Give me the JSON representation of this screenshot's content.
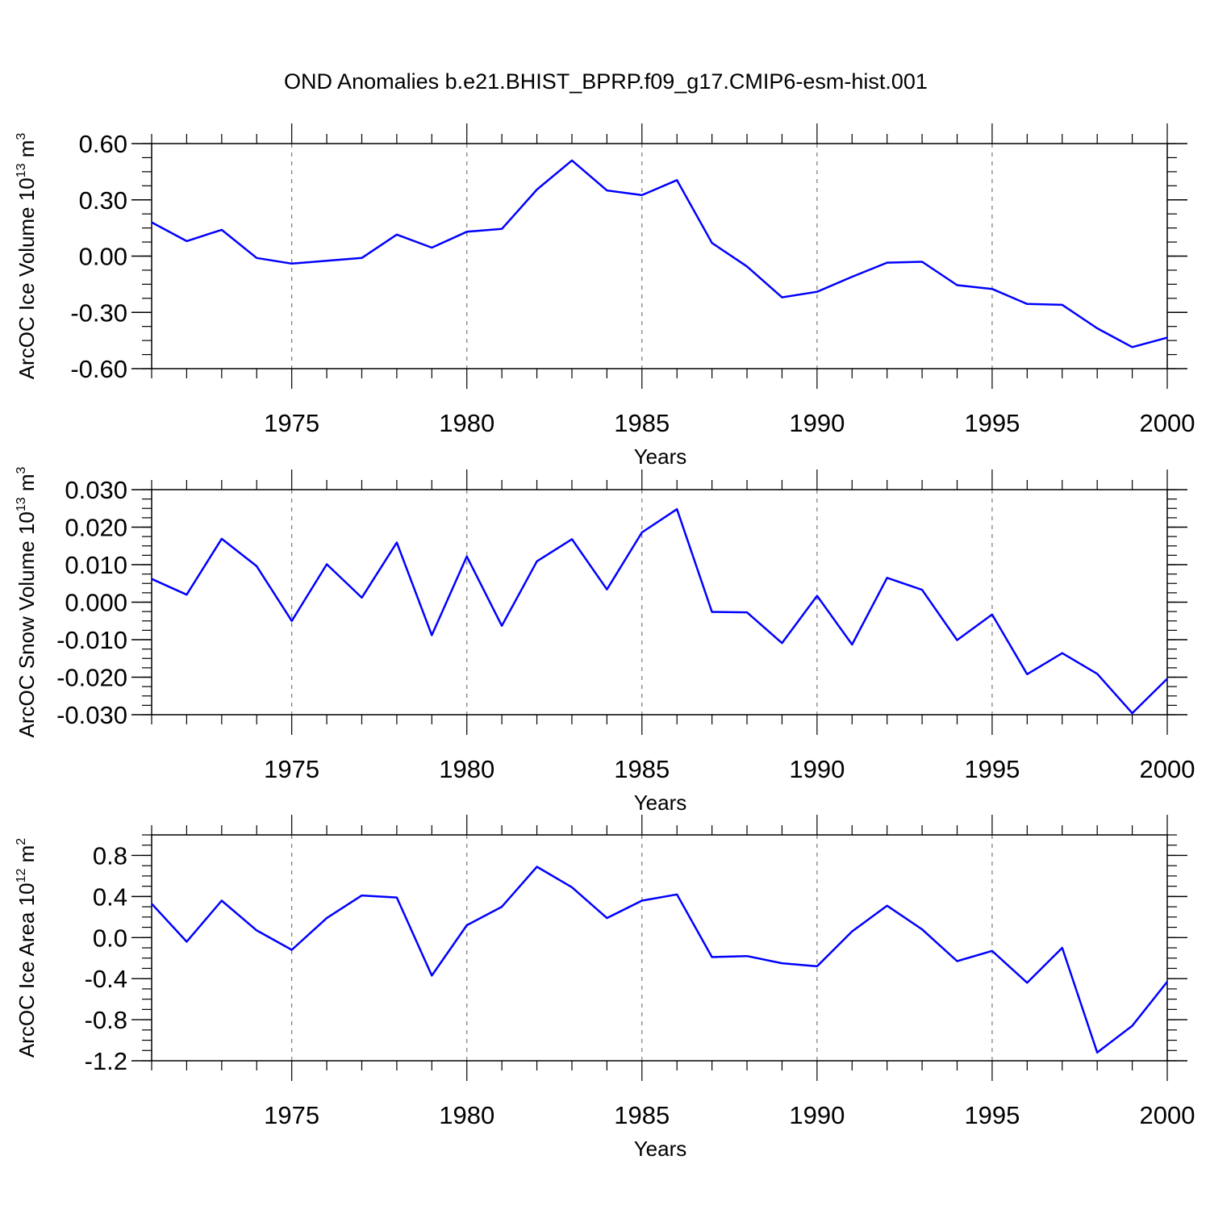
{
  "figure": {
    "title": "OND Anomalies b.e21.BHIST_BPRP.f09_g17.CMIP6-esm-hist.001"
  },
  "chart_data": [
    {
      "type": "line",
      "ylabel": "ArcOC Ice Volume 10",
      "ylabel_sup": "13",
      "ylabel_unit": " m",
      "ylabel_unit_sup": "3",
      "xlabel": "Years",
      "ylim": [
        -0.6,
        0.6
      ],
      "xlim": [
        1971,
        2000
      ],
      "yticks": [
        -0.6,
        -0.3,
        0.0,
        0.3,
        0.6
      ],
      "ytick_labels": [
        "-0.60",
        "-0.30",
        "0.00",
        "0.30",
        "0.60"
      ],
      "xticks": [
        1975,
        1980,
        1985,
        1990,
        1995,
        2000
      ],
      "xtick_labels": [
        "1975",
        "1980",
        "1985",
        "1990",
        "1995",
        "2000"
      ],
      "grid": "vertical dashed at major x ticks",
      "line_color": "#0000ff",
      "x": [
        1971,
        1972,
        1973,
        1974,
        1975,
        1976,
        1977,
        1978,
        1979,
        1980,
        1981,
        1982,
        1983,
        1984,
        1985,
        1986,
        1987,
        1988,
        1989,
        1990,
        1991,
        1992,
        1993,
        1994,
        1995,
        1996,
        1997,
        1998,
        1999,
        2000
      ],
      "values": [
        0.18,
        0.08,
        0.14,
        -0.01,
        -0.04,
        -0.025,
        -0.01,
        0.115,
        0.045,
        0.13,
        0.145,
        0.355,
        0.51,
        0.35,
        0.325,
        0.405,
        0.07,
        -0.055,
        -0.22,
        -0.19,
        -0.11,
        -0.035,
        -0.03,
        -0.155,
        -0.175,
        -0.255,
        -0.26,
        -0.385,
        -0.485,
        -0.435
      ]
    },
    {
      "type": "line",
      "ylabel": "ArcOC Snow Volume 10",
      "ylabel_sup": "13",
      "ylabel_unit": " m",
      "ylabel_unit_sup": "3",
      "xlabel": "Years",
      "ylim": [
        -0.03,
        0.03
      ],
      "xlim": [
        1971,
        2000
      ],
      "yticks": [
        -0.03,
        -0.02,
        -0.01,
        0.0,
        0.01,
        0.02,
        0.03
      ],
      "ytick_labels": [
        "-0.030",
        "-0.020",
        "-0.010",
        "0.000",
        "0.010",
        "0.020",
        "0.030"
      ],
      "xticks": [
        1975,
        1980,
        1985,
        1990,
        1995,
        2000
      ],
      "xtick_labels": [
        "1975",
        "1980",
        "1985",
        "1990",
        "1995",
        "2000"
      ],
      "grid": "vertical dashed at major x ticks",
      "line_color": "#0000ff",
      "x": [
        1971,
        1972,
        1973,
        1974,
        1975,
        1976,
        1977,
        1978,
        1979,
        1980,
        1981,
        1982,
        1983,
        1984,
        1985,
        1986,
        1987,
        1988,
        1989,
        1990,
        1991,
        1992,
        1993,
        1994,
        1995,
        1996,
        1997,
        1998,
        1999,
        2000
      ],
      "values": [
        0.0062,
        0.002,
        0.0169,
        0.0096,
        -0.005,
        0.0101,
        0.0012,
        0.0159,
        -0.0088,
        0.0122,
        -0.0063,
        0.0109,
        0.0168,
        0.0034,
        0.0186,
        0.0248,
        -0.0026,
        -0.0027,
        -0.0109,
        0.0017,
        -0.0113,
        0.0065,
        0.0033,
        -0.0101,
        -0.0033,
        -0.0192,
        -0.0136,
        -0.0191,
        -0.0296,
        -0.0204
      ]
    },
    {
      "type": "line",
      "ylabel": "ArcOC Ice Area 10",
      "ylabel_sup": "12",
      "ylabel_unit": " m",
      "ylabel_unit_sup": "2",
      "xlabel": "Years",
      "ylim": [
        -1.2,
        1.0
      ],
      "xlim": [
        1971,
        2000
      ],
      "yticks": [
        -1.2,
        -0.8,
        -0.4,
        0.0,
        0.4,
        0.8
      ],
      "ytick_labels": [
        "-1.2",
        "-0.8",
        "-0.4",
        "0.0",
        "0.4",
        "0.8"
      ],
      "xticks": [
        1975,
        1980,
        1985,
        1990,
        1995,
        2000
      ],
      "xtick_labels": [
        "1975",
        "1980",
        "1985",
        "1990",
        "1995",
        "2000"
      ],
      "grid": "vertical dashed at major x ticks",
      "line_color": "#0000ff",
      "x": [
        1971,
        1972,
        1973,
        1974,
        1975,
        1976,
        1977,
        1978,
        1979,
        1980,
        1981,
        1982,
        1983,
        1984,
        1985,
        1986,
        1987,
        1988,
        1989,
        1990,
        1991,
        1992,
        1993,
        1994,
        1995,
        1996,
        1997,
        1998,
        1999,
        2000
      ],
      "values": [
        0.33,
        -0.04,
        0.36,
        0.07,
        -0.12,
        0.19,
        0.41,
        0.39,
        -0.37,
        0.12,
        0.3,
        0.69,
        0.49,
        0.19,
        0.36,
        0.42,
        -0.19,
        -0.18,
        -0.25,
        -0.28,
        0.06,
        0.31,
        0.08,
        -0.23,
        -0.13,
        -0.44,
        -0.1,
        -1.12,
        -0.86,
        -0.43
      ]
    }
  ]
}
